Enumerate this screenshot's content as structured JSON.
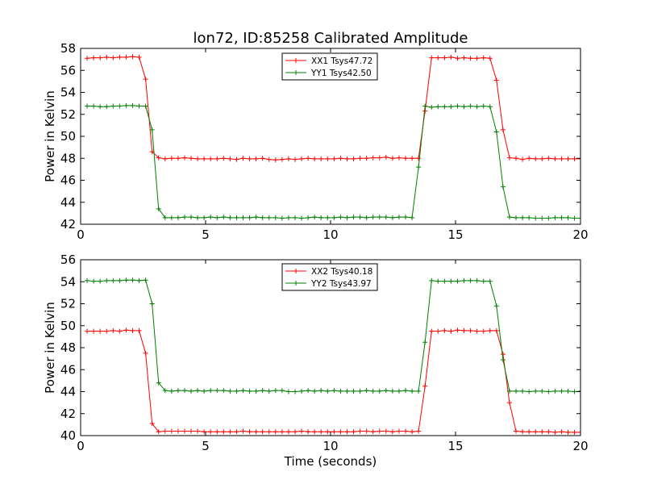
{
  "figure": {
    "title": "lon72, ID:85258 Calibrated Amplitude",
    "xlabel": "Time (seconds)"
  },
  "colors": {
    "red": "#ff0000",
    "green": "#008000",
    "axis": "#000000",
    "background": "#ffffff"
  },
  "chart_data": [
    {
      "type": "line",
      "title": "lon72, ID:85258 Calibrated Amplitude",
      "xlabel": "",
      "ylabel": "Power in Kelvin",
      "xlim": [
        0,
        20
      ],
      "ylim": [
        42,
        58
      ],
      "xticks": [
        0,
        5,
        10,
        15,
        20
      ],
      "yticks": [
        42,
        44,
        46,
        48,
        50,
        52,
        54,
        56,
        58
      ],
      "grid": false,
      "legend_position": "top-center",
      "x": [
        0.26,
        0.52,
        0.78,
        1.04,
        1.3,
        1.56,
        1.82,
        2.08,
        2.34,
        2.6,
        2.86,
        3.12,
        3.38,
        3.64,
        3.9,
        4.16,
        4.42,
        4.68,
        4.94,
        5.2,
        5.46,
        5.72,
        5.98,
        6.24,
        6.5,
        6.76,
        7.02,
        7.28,
        7.54,
        7.8,
        8.06,
        8.32,
        8.58,
        8.84,
        9.1,
        9.36,
        9.62,
        9.88,
        10.14,
        10.4,
        10.66,
        10.92,
        11.18,
        11.44,
        11.7,
        11.96,
        12.22,
        12.48,
        12.74,
        13.0,
        13.26,
        13.52,
        13.78,
        14.04,
        14.3,
        14.56,
        14.82,
        15.08,
        15.34,
        15.6,
        15.86,
        16.12,
        16.38,
        16.64,
        16.9,
        17.16,
        17.42,
        17.68,
        17.94,
        18.2,
        18.46,
        18.72,
        18.98,
        19.24,
        19.5,
        19.76,
        20.02
      ],
      "series": [
        {
          "name": "XX1 Tsys47.72",
          "color": "#ff0000",
          "values": [
            57.1,
            57.15,
            57.15,
            57.2,
            57.15,
            57.2,
            57.2,
            57.25,
            57.2,
            55.2,
            48.6,
            48.05,
            47.95,
            48.0,
            48.0,
            48.05,
            48.0,
            47.95,
            47.95,
            47.95,
            47.95,
            48.0,
            47.95,
            47.9,
            48.0,
            47.95,
            47.95,
            48.0,
            47.9,
            47.85,
            47.9,
            47.95,
            47.9,
            47.95,
            48.0,
            47.95,
            47.95,
            47.95,
            47.95,
            48.0,
            47.95,
            47.95,
            48.0,
            48.0,
            48.05,
            48.05,
            48.1,
            48.0,
            48.05,
            48.0,
            48.0,
            48.0,
            52.3,
            57.15,
            57.15,
            57.15,
            57.2,
            57.1,
            57.15,
            57.1,
            57.1,
            57.15,
            57.1,
            55.1,
            50.6,
            48.05,
            48.0,
            47.9,
            48.0,
            47.95,
            47.95,
            48.0,
            47.95,
            47.95,
            47.95,
            47.95,
            47.95
          ]
        },
        {
          "name": "YY1 Tsys42.50",
          "color": "#008000",
          "values": [
            52.75,
            52.75,
            52.7,
            52.7,
            52.75,
            52.75,
            52.8,
            52.8,
            52.75,
            52.75,
            50.6,
            43.4,
            42.6,
            42.6,
            42.6,
            42.65,
            42.65,
            42.6,
            42.6,
            42.65,
            42.6,
            42.65,
            42.6,
            42.6,
            42.6,
            42.6,
            42.65,
            42.6,
            42.6,
            42.6,
            42.55,
            42.6,
            42.6,
            42.55,
            42.6,
            42.65,
            42.6,
            42.6,
            42.6,
            42.65,
            42.6,
            42.65,
            42.65,
            42.6,
            42.65,
            42.65,
            42.65,
            42.6,
            42.65,
            42.65,
            42.6,
            47.2,
            52.75,
            52.65,
            52.7,
            52.7,
            52.7,
            52.75,
            52.7,
            52.75,
            52.7,
            52.75,
            52.7,
            50.4,
            45.4,
            42.65,
            42.6,
            42.6,
            42.6,
            42.55,
            42.55,
            42.55,
            42.6,
            42.6,
            42.6,
            42.55,
            42.55
          ]
        }
      ]
    },
    {
      "type": "line",
      "title": "",
      "xlabel": "Time (seconds)",
      "ylabel": "Power in Kelvin",
      "xlim": [
        0,
        20
      ],
      "ylim": [
        40,
        56
      ],
      "xticks": [
        0,
        5,
        10,
        15,
        20
      ],
      "yticks": [
        40,
        42,
        44,
        46,
        48,
        50,
        52,
        54,
        56
      ],
      "grid": false,
      "legend_position": "top-center",
      "x": [
        0.26,
        0.52,
        0.78,
        1.04,
        1.3,
        1.56,
        1.82,
        2.08,
        2.34,
        2.6,
        2.86,
        3.12,
        3.38,
        3.64,
        3.9,
        4.16,
        4.42,
        4.68,
        4.94,
        5.2,
        5.46,
        5.72,
        5.98,
        6.24,
        6.5,
        6.76,
        7.02,
        7.28,
        7.54,
        7.8,
        8.06,
        8.32,
        8.58,
        8.84,
        9.1,
        9.36,
        9.62,
        9.88,
        10.14,
        10.4,
        10.66,
        10.92,
        11.18,
        11.44,
        11.7,
        11.96,
        12.22,
        12.48,
        12.74,
        13.0,
        13.26,
        13.52,
        13.78,
        14.04,
        14.3,
        14.56,
        14.82,
        15.08,
        15.34,
        15.6,
        15.86,
        16.12,
        16.38,
        16.64,
        16.9,
        17.16,
        17.42,
        17.68,
        17.94,
        18.2,
        18.46,
        18.72,
        18.98,
        19.24,
        19.5,
        19.76,
        20.02
      ],
      "series": [
        {
          "name": "XX2 Tsys40.18",
          "color": "#ff0000",
          "values": [
            49.5,
            49.5,
            49.5,
            49.5,
            49.55,
            49.5,
            49.6,
            49.55,
            49.55,
            47.5,
            41.1,
            40.35,
            40.4,
            40.4,
            40.4,
            40.4,
            40.4,
            40.4,
            40.35,
            40.35,
            40.35,
            40.35,
            40.35,
            40.35,
            40.4,
            40.35,
            40.35,
            40.35,
            40.35,
            40.35,
            40.35,
            40.35,
            40.35,
            40.4,
            40.35,
            40.35,
            40.35,
            40.35,
            40.35,
            40.35,
            40.35,
            40.35,
            40.4,
            40.4,
            40.35,
            40.4,
            40.4,
            40.35,
            40.4,
            40.4,
            40.35,
            40.4,
            44.5,
            49.5,
            49.5,
            49.55,
            49.5,
            49.6,
            49.55,
            49.55,
            49.5,
            49.5,
            49.55,
            49.55,
            47.4,
            43.0,
            40.4,
            40.35,
            40.35,
            40.35,
            40.35,
            40.35,
            40.3,
            40.35,
            40.3,
            40.3,
            40.3
          ]
        },
        {
          "name": "YY2 Tsys43.97",
          "color": "#008000",
          "values": [
            54.1,
            54.05,
            54.05,
            54.1,
            54.1,
            54.1,
            54.15,
            54.15,
            54.1,
            54.15,
            52.0,
            44.8,
            44.1,
            44.05,
            44.1,
            44.1,
            44.05,
            44.1,
            44.05,
            44.1,
            44.1,
            44.1,
            44.05,
            44.05,
            44.1,
            44.05,
            44.05,
            44.1,
            44.05,
            44.1,
            44.1,
            44.0,
            44.0,
            44.05,
            44.1,
            44.05,
            44.1,
            44.05,
            44.1,
            44.05,
            44.05,
            44.05,
            44.05,
            44.1,
            44.05,
            44.05,
            44.1,
            44.05,
            44.05,
            44.1,
            44.05,
            44.05,
            48.5,
            54.1,
            54.05,
            54.05,
            54.05,
            54.05,
            54.1,
            54.1,
            54.1,
            54.05,
            54.05,
            51.8,
            46.9,
            44.05,
            44.05,
            44.05,
            44.0,
            44.05,
            44.05,
            44.0,
            44.05,
            44.05,
            44.05,
            44.0,
            44.05
          ]
        }
      ]
    }
  ]
}
